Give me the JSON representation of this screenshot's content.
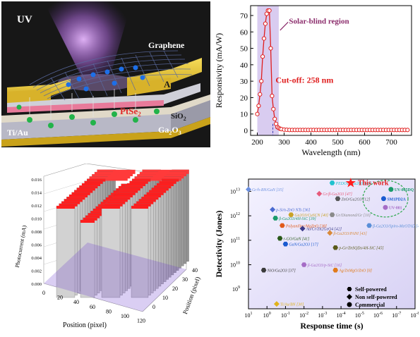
{
  "panel_a": {
    "labels": {
      "uv": "UV",
      "graphene": "Graphene",
      "au": "Au",
      "ptse2": "PtSe",
      "ptse2_sub": "2",
      "sio2": "SiO",
      "sio2_sub": "2",
      "ga2o3": "Ga",
      "ga2o3_sub1": "2",
      "ga2o3_o": "O",
      "ga2o3_sub2": "3",
      "tiau": "Ti/Au"
    },
    "colors": {
      "uv_beam": "#c58cf0",
      "gold": "#e8c83a",
      "ptse2_text": "#e22a2a",
      "sio2_layer": "#cfcfd8",
      "ga2o3_layer": "#b8b8c6",
      "electron": "#1d6fe8",
      "hole": "#22b34a"
    }
  },
  "panel_b": {
    "annotations": {
      "region": "Solar-blind region",
      "cutoff": "Cut-off: 258 nm"
    },
    "chart_data": {
      "type": "line",
      "xlabel": "Wavelength (nm)",
      "ylabel": "Responsivity (mA/W)",
      "xlim": [
        175,
        775
      ],
      "ylim": [
        -3,
        76
      ],
      "xticks": [
        200,
        300,
        400,
        500,
        600,
        700
      ],
      "yticks": [
        0,
        10,
        20,
        30,
        40,
        50,
        60,
        70
      ],
      "shaded_region": [
        200,
        280
      ],
      "cutoff_x": 258,
      "series": [
        {
          "color": "#e01e1e",
          "x": [
            200,
            205,
            210,
            215,
            220,
            225,
            230,
            235,
            240,
            245,
            250,
            255,
            260,
            265,
            270,
            275,
            280,
            285,
            290,
            300,
            310,
            320,
            330,
            340,
            350,
            360,
            370,
            380,
            390,
            400,
            410,
            420,
            430,
            440,
            450,
            460,
            470,
            480,
            490,
            500,
            510,
            520,
            530,
            540,
            550,
            560,
            570,
            580,
            590,
            600,
            610,
            620,
            630,
            640,
            650,
            660,
            670,
            680,
            690,
            700,
            710,
            720,
            730,
            740,
            750,
            760
          ],
          "y": [
            10,
            15,
            22,
            30,
            45,
            56,
            65,
            71,
            73,
            73,
            50,
            21,
            13,
            7,
            4,
            2,
            1.5,
            1,
            0.8,
            0.5,
            0.4,
            0.3,
            0.3,
            0.3,
            0.3,
            0.3,
            0.3,
            0.3,
            0.3,
            0.3,
            0.3,
            0.3,
            0.3,
            0.3,
            0.3,
            0.3,
            0.3,
            0.3,
            0.3,
            0.3,
            0.3,
            0.3,
            0.3,
            0.3,
            0.3,
            0.3,
            0.3,
            0.3,
            0.3,
            0.3,
            0.3,
            0.3,
            0.3,
            0.3,
            0.3,
            0.3,
            0.3,
            0.3,
            0.3,
            0.3,
            0.3,
            0.3,
            0.3,
            0.3,
            0.3,
            0.3
          ]
        }
      ]
    }
  },
  "panel_c": {
    "labels": {
      "zlabel": "Photocurrent (mA)",
      "xlabel": "Position (pixel)",
      "ylabel": "Position (pixel)"
    },
    "xticks": [
      "0",
      "20",
      "40",
      "60",
      "80",
      "100",
      "120"
    ],
    "yticks": [
      "0",
      "10",
      "20",
      "30",
      "40"
    ],
    "zticks": [
      "0.000",
      "0.002",
      "0.004",
      "0.006",
      "0.008",
      "0.010",
      "0.012",
      "0.014",
      "0.016"
    ]
  },
  "panel_d": {
    "this_work": "This work",
    "legend": {
      "self": "Self-powered",
      "non": "Non self-powered",
      "commercial": "Commercial"
    },
    "chart_data": {
      "type": "scatter",
      "xlabel": "Response time (s)",
      "ylabel": "Detectivity (Jones)",
      "xaxis_reversed": true,
      "xticks_exp": [
        1,
        0,
        -1,
        -2,
        -3,
        -4,
        -5,
        -6,
        -7,
        -8
      ],
      "yticks_exp": [
        9,
        10,
        11,
        12,
        13
      ],
      "xlim_exp": [
        1,
        -8
      ],
      "ylim_exp": [
        8.2,
        13.5
      ],
      "points": [
        {
          "label": "Gr/h-BN/GaN [35]",
          "x": 10,
          "y": 12000000000000.0,
          "shape": "diamond",
          "color": "#6b8fe0"
        },
        {
          "label": "PEDOT:/Ga2O3 [44]",
          "x": 0.0003,
          "y": 22000000000000.0,
          "shape": "hexagon",
          "color": "#20c2cf"
        },
        {
          "label": "Gr/β-Ga2O3 [47]",
          "x": 0.0015,
          "y": 8000000000000.0,
          "shape": "diamond",
          "color": "#e65a7a"
        },
        {
          "label": "ZnO/Ga2O3 [12]",
          "x": 0.00015,
          "y": 5000000000000.0,
          "shape": "hexagon",
          "color": "#555555"
        },
        {
          "label": "p-Si/n-ZnO NTs [36]",
          "x": 0.5,
          "y": 1800000000000.0,
          "shape": "diamond",
          "color": "#4a6ad0"
        },
        {
          "label": "Gr/Diamond/Gr [10]",
          "x": 0.0003,
          "y": 1100000000000.0,
          "shape": "hexagon",
          "color": "#8a8a8a"
        },
        {
          "label": "β-Ga2O3/4H-SiC [39]",
          "x": 0.35,
          "y": 800000000000.0,
          "shape": "hexagon",
          "color": "#1a9a6a"
        },
        {
          "label": "Ga2O3/CuSCN [40]",
          "x": 0.05,
          "y": 1100000000000.0,
          "shape": "hexagon",
          "color": "#c9a227"
        },
        {
          "label": "Polyaniline/MgZnO [38]",
          "x": 0.15,
          "y": 400000000000.0,
          "shape": "hexagon",
          "color": "#e05a1a"
        },
        {
          "label": "Au/Cr/Zn2GeO4 [42]",
          "x": 0.012,
          "y": 300000000000.0,
          "shape": "diamond",
          "color": "#3a3a8a"
        },
        {
          "label": "β-Ga2O3/PANI [43]",
          "x": 0.0004,
          "y": 200000000000.0,
          "shape": "diamond",
          "color": "#d98a3a"
        },
        {
          "label": "β-Ga2O3/Spiro-MeOTAD [46]",
          "x": 3e-06,
          "y": 400000000000.0,
          "shape": "hexagon",
          "color": "#5a8fd8"
        },
        {
          "label": "r-GO/GaN [41]",
          "x": 0.2,
          "y": 120000000000.0,
          "shape": "hexagon",
          "color": "#2a5a1a"
        },
        {
          "label": "GaN/Ga2O3 [17]",
          "x": 0.1,
          "y": 70000000000.0,
          "shape": "hexagon",
          "color": "#1a5ad0"
        },
        {
          "label": "p-Gr/ZnSQDs/4H-SiC [45]",
          "x": 0.0002,
          "y": 50000000000.0,
          "shape": "hexagon",
          "color": "#5a5a1a"
        },
        {
          "label": "β-Ga2O3/p-SiC [16]",
          "x": 0.01,
          "y": 10000000000.0,
          "shape": "hexagon",
          "color": "#a56cc6"
        },
        {
          "label": "NiO/Ga2O3 [37]",
          "x": 1.5,
          "y": 6000000000.0,
          "shape": "hexagon",
          "color": "#3a3a3a"
        },
        {
          "label": "Ag/ZnMgO/ZnO [8]",
          "x": 0.0002,
          "y": 6000000000.0,
          "shape": "hexagon",
          "color": "#e07a1a"
        },
        {
          "label": "Ti/Au/BN [30]",
          "x": 0.3,
          "y": 250000000.0,
          "shape": "diamond",
          "color": "#e0b21a"
        },
        {
          "label": "UV-005DQ",
          "x": 2e-07,
          "y": 12000000000000.0,
          "shape": "circle",
          "color": "#1a9a6a"
        },
        {
          "label": "SM1PD2A",
          "x": 5e-07,
          "y": 5000000000000.0,
          "shape": "circle",
          "color": "#1a5ad0"
        },
        {
          "label": "UV-001",
          "x": 4e-07,
          "y": 2200000000000.0,
          "shape": "circle",
          "color": "#a56cc6"
        },
        {
          "label": "This work",
          "x": 3e-05,
          "y": 22000000000000.0,
          "shape": "star",
          "color": "#ff1e1e"
        }
      ]
    }
  }
}
